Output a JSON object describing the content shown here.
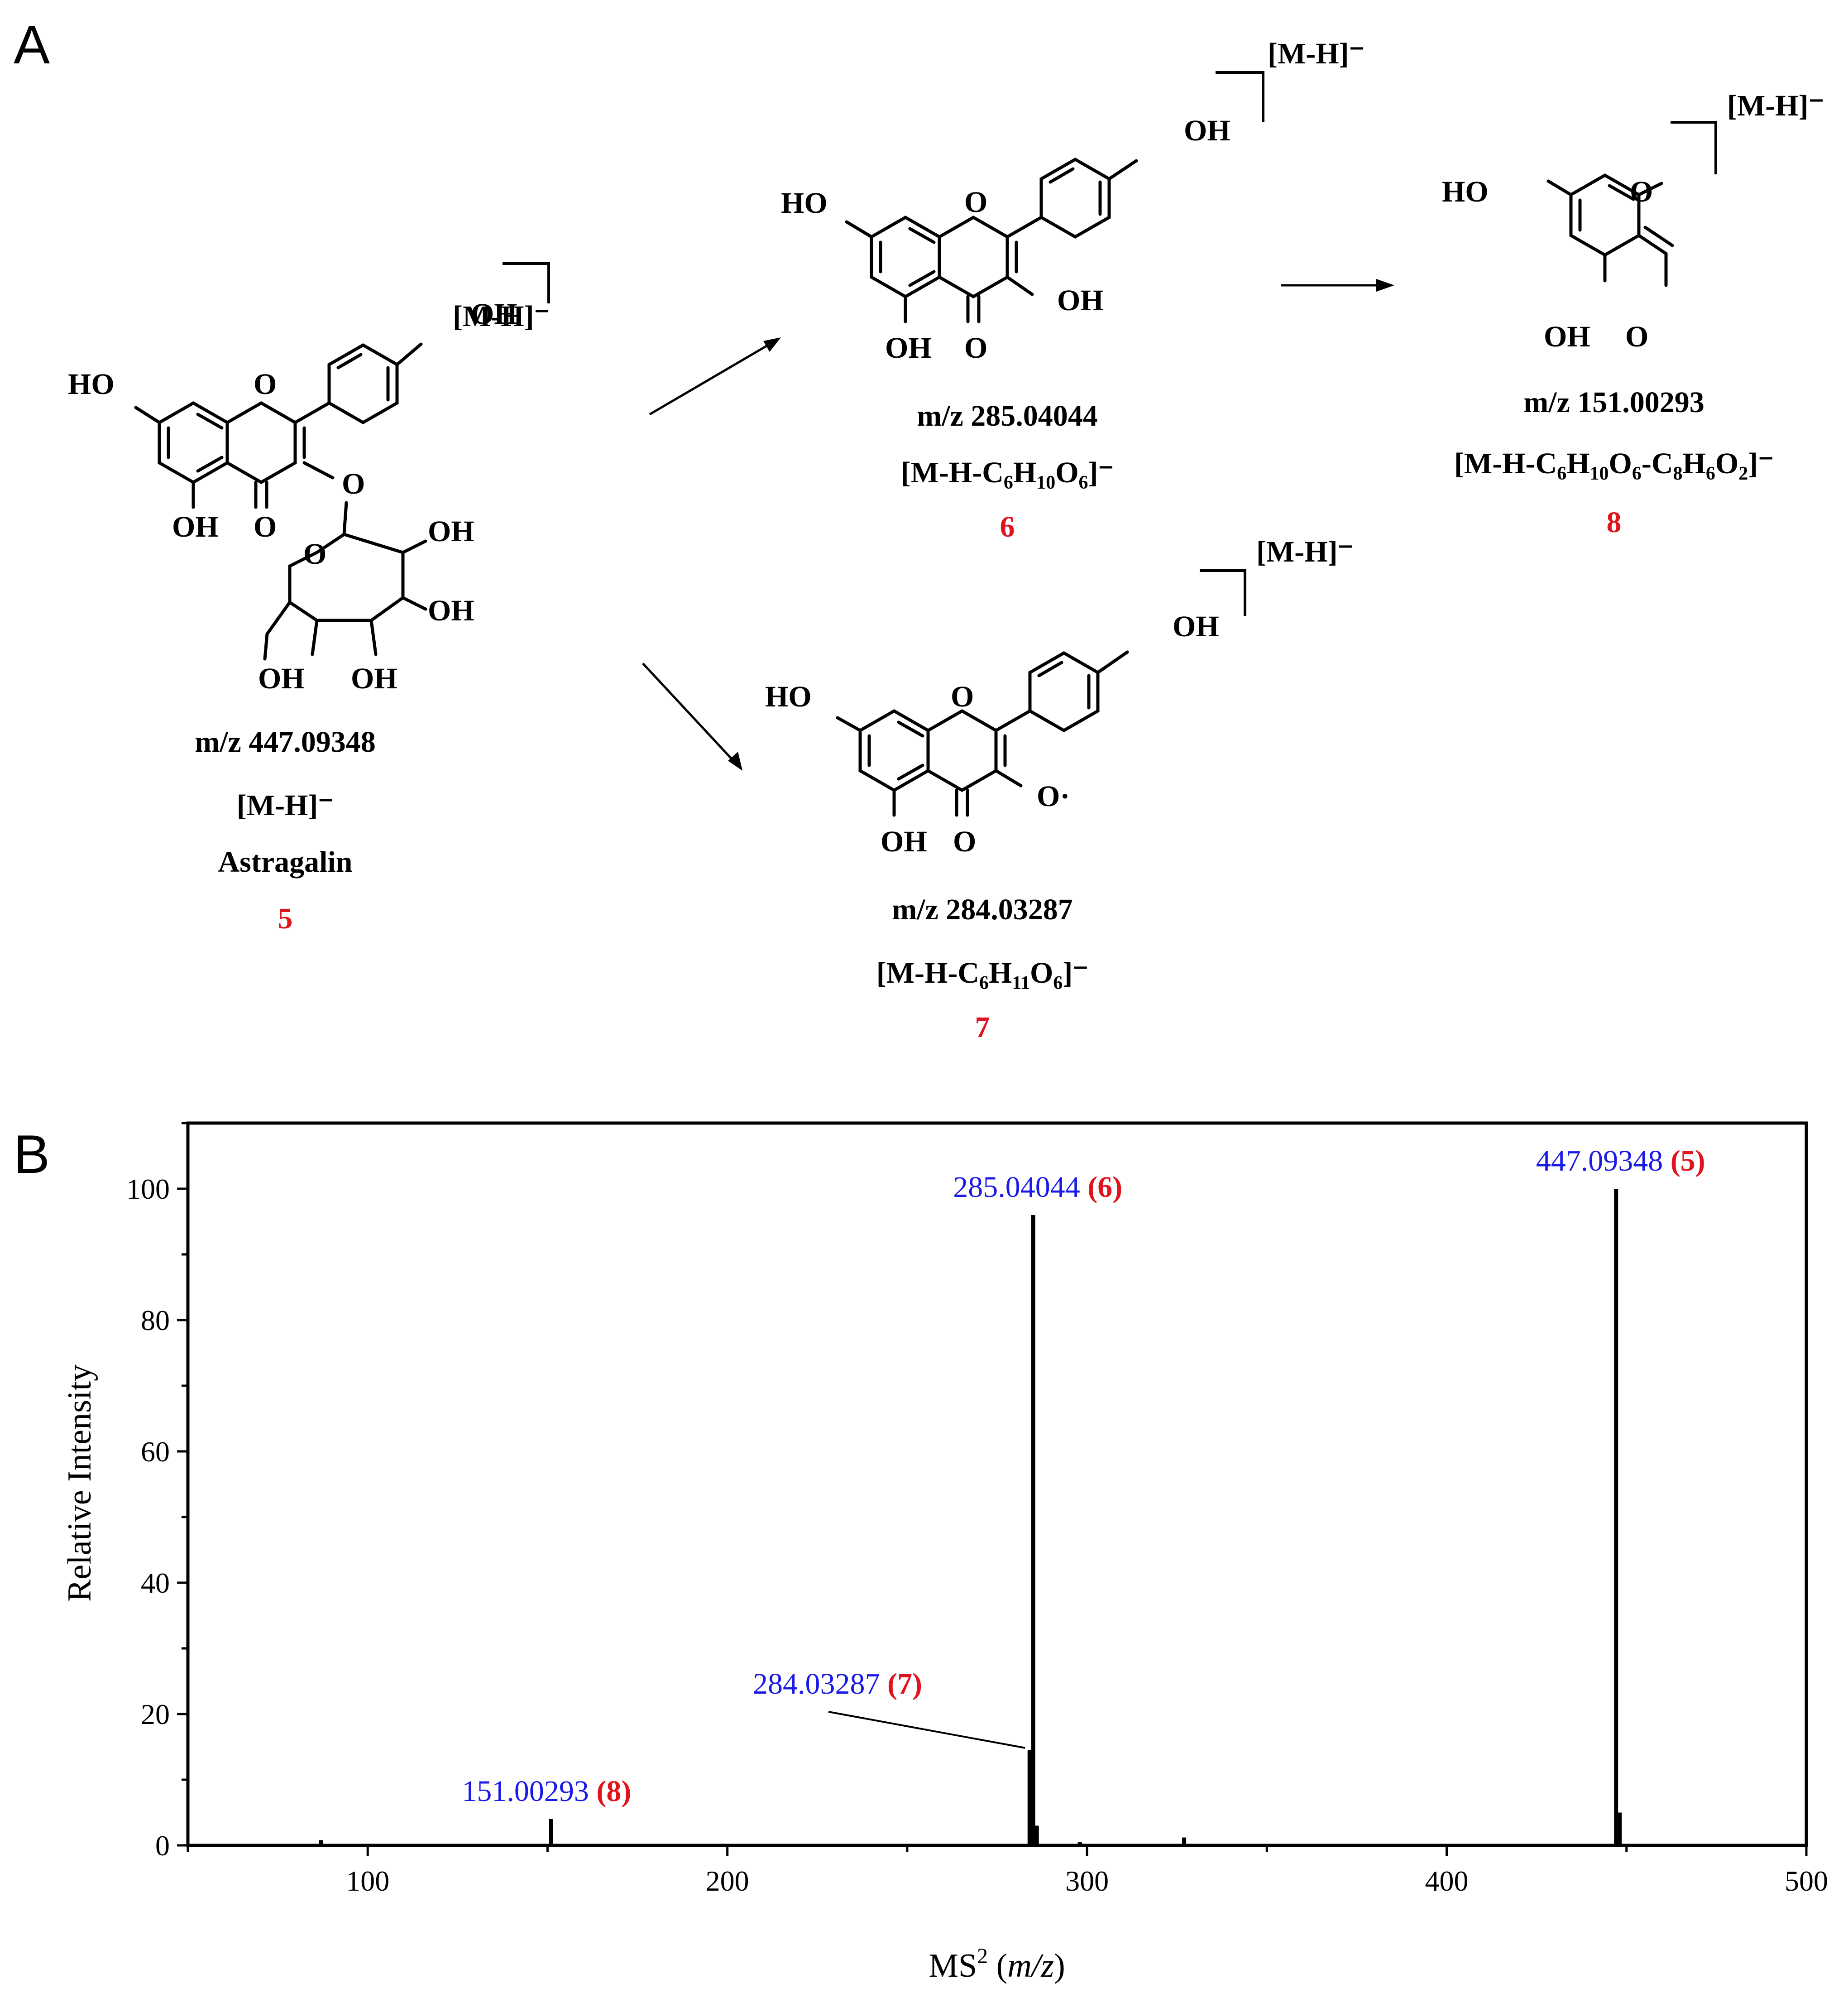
{
  "panels": {
    "a": "A",
    "b": "B"
  },
  "colors": {
    "ink": "#000000",
    "compound_number": "#e0141e",
    "peak_value": "#1a1ae6"
  },
  "structures": {
    "astragalin": {
      "charge": "[M-H]⁻",
      "substituents": {
        "oh_4p": "OH",
        "ho_7": "HO",
        "ring_o": "O",
        "glyco_o": "O",
        "oh_5": "OH",
        "keto_o": "O",
        "sugar_o": "O",
        "oh_2s": "OH",
        "oh_3s": "OH",
        "oh_6s": "OH",
        "oh_4s": "OH"
      },
      "mz": "m/z 447.09348",
      "ion": "[M-H]⁻",
      "name": "Astragalin",
      "number": "5"
    },
    "kaempferol": {
      "charge": "[M-H]⁻",
      "substituents": {
        "oh_4p": "OH",
        "ho_7": "HO",
        "ring_o": "O",
        "oh_3": "OH",
        "oh_5": "OH",
        "keto_o": "O"
      },
      "mz": "m/z 285.04044",
      "ion": {
        "main": "[M-H-C",
        "s1": "6",
        "h": "H",
        "s2": "10",
        "o": "O",
        "s3": "6",
        "tail": "]⁻"
      },
      "number": "6"
    },
    "radical": {
      "charge": "[M-H]⁻",
      "substituents": {
        "oh_4p": "OH",
        "ho_7": "HO",
        "ring_o": "O",
        "o_rad": "O·",
        "oh_5": "OH",
        "keto_o": "O"
      },
      "mz": "m/z 284.03287",
      "ion": {
        "main": "[M-H-C",
        "s1": "6",
        "h": "H",
        "s2": "11",
        "o": "O",
        "s3": "6",
        "tail": "]⁻"
      },
      "number": "7"
    },
    "fragment": {
      "charge": "[M-H]⁻",
      "substituents": {
        "ho": "HO",
        "keto_o": "O",
        "oh": "OH",
        "ald_o": "O"
      },
      "mz": "m/z 151.00293",
      "ion": {
        "main": "[M-H-C",
        "s1": "6",
        "h": "H",
        "s2": "10",
        "o": "O",
        "s3": "6",
        "mid": "-C",
        "s4": "8",
        "h2": "H",
        "s5": "6",
        "o2": "O",
        "s6": "2",
        "tail": "]⁻"
      },
      "number": "8"
    }
  },
  "chart_data": {
    "type": "bar",
    "title": "",
    "xlabel": {
      "main": "MS",
      "sup": "2",
      "rest": " (",
      "italic": "m/z",
      "close": ")"
    },
    "ylabel": "Relative Intensity",
    "xlim": [
      50,
      500
    ],
    "ylim": [
      0,
      110
    ],
    "x_ticks": [
      100,
      200,
      300,
      400,
      500
    ],
    "y_ticks": [
      0,
      20,
      40,
      60,
      80,
      100
    ],
    "peaks": [
      {
        "mz": 87.0,
        "intensity": 0.8
      },
      {
        "mz": 151.00293,
        "intensity": 4.0,
        "label": "151.00293",
        "compound": "(8)"
      },
      {
        "mz": 284.03287,
        "intensity": 14.5,
        "label": "284.03287",
        "compound": "(7)"
      },
      {
        "mz": 285.04044,
        "intensity": 96.0,
        "label": "285.04044",
        "compound": "(6)"
      },
      {
        "mz": 286.04,
        "intensity": 3.0
      },
      {
        "mz": 298.0,
        "intensity": 0.5
      },
      {
        "mz": 327.0,
        "intensity": 1.2
      },
      {
        "mz": 447.09348,
        "intensity": 100.0,
        "label": "447.09348",
        "compound": "(5)"
      },
      {
        "mz": 448.1,
        "intensity": 5.0
      }
    ]
  }
}
